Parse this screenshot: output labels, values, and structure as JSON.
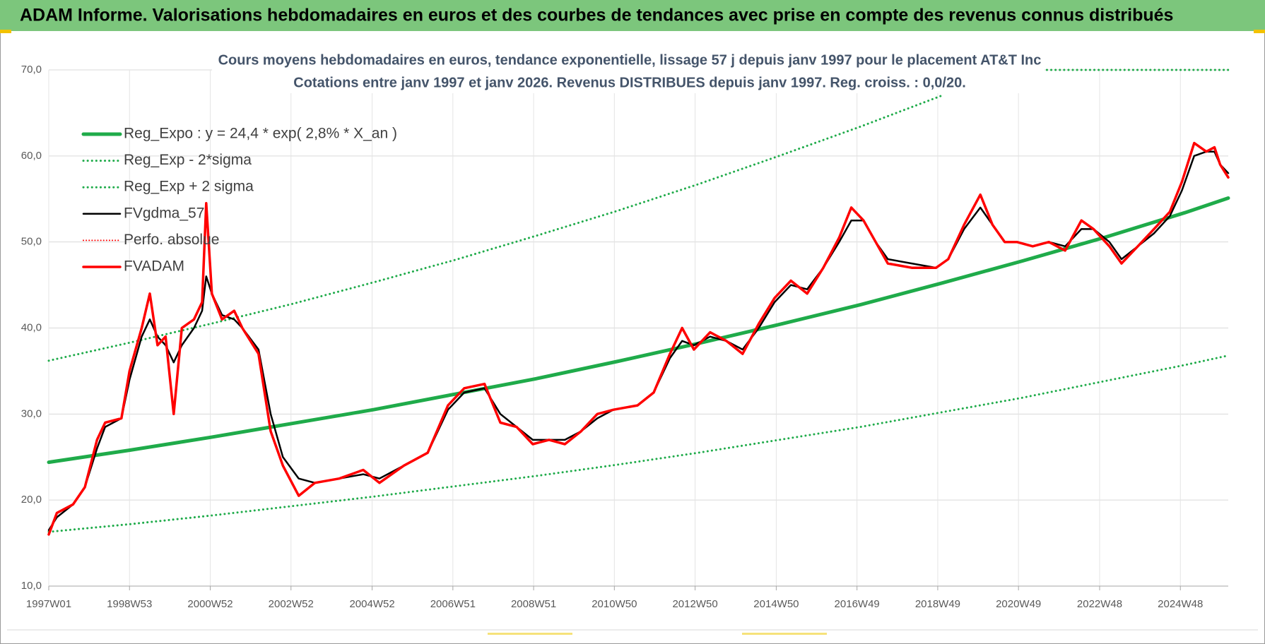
{
  "header": {
    "title": "ADAM Informe. Valorisations hebdomadaires en euros et des courbes de tendances avec prise en compte des revenus connus distribués"
  },
  "chart_data": {
    "type": "line",
    "title": "Cours moyens hebdomadaires en euros, tendance exponentielle, lissage 57 j depuis janv 1997 pour le placement AT&T Inc",
    "subtitle": "Cotations entre janv 1997 et janv 2026. Revenus DISTRIBUES depuis janv 1997. Reg. croiss. : 0,0/20.",
    "xlim": [
      1997.0,
      2026.07
    ],
    "xticks": [
      {
        "value": 1997.0,
        "label": "1997W01"
      },
      {
        "value": 1998.99,
        "label": "1998W53"
      },
      {
        "value": 2000.98,
        "label": "2000W52"
      },
      {
        "value": 2002.97,
        "label": "2002W52"
      },
      {
        "value": 2004.97,
        "label": "2004W52"
      },
      {
        "value": 2006.96,
        "label": "2006W51"
      },
      {
        "value": 2008.95,
        "label": "2008W51"
      },
      {
        "value": 2010.94,
        "label": "2010W50"
      },
      {
        "value": 2012.93,
        "label": "2012W50"
      },
      {
        "value": 2014.93,
        "label": "2014W50"
      },
      {
        "value": 2016.92,
        "label": "2016W49"
      },
      {
        "value": 2018.91,
        "label": "2018W49"
      },
      {
        "value": 2020.9,
        "label": "2020W49"
      },
      {
        "value": 2022.9,
        "label": "2022W48"
      },
      {
        "value": 2024.89,
        "label": "2024W48"
      }
    ],
    "ylim": [
      10,
      70
    ],
    "yticks": [
      {
        "value": 10,
        "label": "10,0"
      },
      {
        "value": 20,
        "label": "20,0"
      },
      {
        "value": 30,
        "label": "30,0"
      },
      {
        "value": 40,
        "label": "40,0"
      },
      {
        "value": 50,
        "label": "50,0"
      },
      {
        "value": 60,
        "label": "60,0"
      },
      {
        "value": 70,
        "label": "70,0"
      }
    ],
    "grid": true,
    "legend": "upper left",
    "x": [
      1997.0,
      1997.2,
      1997.6,
      1997.89,
      1998.19,
      1998.39,
      1998.79,
      1998.99,
      1999.29,
      1999.49,
      1999.68,
      1999.88,
      2000.08,
      2000.28,
      2000.58,
      2000.78,
      2000.88,
      2001.02,
      2001.27,
      2001.57,
      2001.77,
      2002.17,
      2002.47,
      2002.77,
      2003.16,
      2003.56,
      2004.16,
      2004.75,
      2005.15,
      2005.75,
      2006.34,
      2006.84,
      2007.24,
      2007.74,
      2008.13,
      2008.53,
      2008.93,
      2009.33,
      2009.72,
      2010.12,
      2010.52,
      2010.92,
      2011.51,
      2011.91,
      2012.31,
      2012.61,
      2012.9,
      2013.3,
      2013.7,
      2014.1,
      2014.5,
      2014.89,
      2015.29,
      2015.69,
      2016.09,
      2016.48,
      2016.78,
      2017.08,
      2017.38,
      2017.68,
      2018.27,
      2018.87,
      2019.17,
      2019.56,
      2019.96,
      2020.26,
      2020.56,
      2020.86,
      2021.25,
      2021.65,
      2022.05,
      2022.45,
      2022.75,
      2023.14,
      2023.44,
      2023.84,
      2024.24,
      2024.63,
      2024.93,
      2025.23,
      2025.53,
      2025.73,
      2025.87,
      2026.07
    ],
    "series": [
      {
        "name": "Reg_Expo : y = 24,4 * exp( 2,8% *  X_an )",
        "color": "#1fab4a",
        "style": "solid",
        "width": 5,
        "x": [
          1997,
          1999,
          2001,
          2003,
          2005,
          2007,
          2009,
          2011,
          2013,
          2015,
          2017,
          2019,
          2021,
          2023,
          2025,
          2026.07
        ],
        "values": [
          24.4,
          25.8,
          27.3,
          28.9,
          30.5,
          32.3,
          34.1,
          36.1,
          38.2,
          40.4,
          42.7,
          45.2,
          47.8,
          50.5,
          53.4,
          55.1
        ]
      },
      {
        "name": "Reg_Exp - 2*sigma",
        "color": "#1fab4a",
        "style": "dotted",
        "width": 3,
        "x": [
          1997,
          1999,
          2001,
          2003,
          2005,
          2007,
          2009,
          2011,
          2013,
          2015,
          2017,
          2019,
          2021,
          2023,
          2025,
          2026.07
        ],
        "values": [
          16.3,
          17.2,
          18.2,
          19.3,
          20.4,
          21.6,
          22.8,
          24.1,
          25.5,
          27.0,
          28.5,
          30.2,
          31.9,
          33.8,
          35.7,
          36.8
        ]
      },
      {
        "name": "Reg_Exp + 2 sigma",
        "color": "#1fab4a",
        "style": "dotted",
        "width": 3,
        "x": [
          1997,
          1999,
          2001,
          2003,
          2005,
          2007,
          2009,
          2011,
          2013,
          2015,
          2017,
          2019,
          2020.3,
          2021.6,
          2026.07
        ],
        "values": [
          36.2,
          38.3,
          40.5,
          42.8,
          45.3,
          47.9,
          50.7,
          53.6,
          56.7,
          60.0,
          63.4,
          67.0,
          null,
          70,
          70
        ]
      },
      {
        "name": "FVgdma_57",
        "color": "#000000",
        "style": "solid",
        "width": 2.5,
        "values": [
          16.5,
          18,
          19.5,
          21.5,
          26,
          28.5,
          29.5,
          34,
          39,
          41,
          39,
          38,
          36,
          38,
          40,
          42,
          46,
          44,
          41.5,
          41,
          40,
          37.5,
          30,
          25,
          22.5,
          22,
          22.5,
          23,
          22.5,
          24,
          25.5,
          30.5,
          32.5,
          33,
          30,
          28.5,
          27,
          27,
          27,
          28,
          29.5,
          30.5,
          31,
          32.5,
          36.5,
          38.5,
          38,
          39,
          38.5,
          37.5,
          40,
          43,
          45,
          44.5,
          47,
          50,
          52.5,
          52.5,
          50,
          48,
          47.5,
          47,
          48,
          51.5,
          54,
          52,
          50,
          50,
          49.5,
          50,
          49.5,
          51.5,
          51.5,
          50,
          48,
          49.5,
          51,
          53,
          56,
          60,
          60.5,
          60.5,
          59,
          58
        ]
      },
      {
        "name": "Perfo. absolue",
        "color": "#ff0000",
        "style": "dotted",
        "width": 2,
        "x": [],
        "values": []
      },
      {
        "name": "FVADAM",
        "color": "#ff0000",
        "style": "solid",
        "width": 3.5,
        "values": [
          16,
          18.5,
          19.5,
          21.5,
          27,
          29,
          29.5,
          35,
          40,
          44,
          38,
          39,
          30,
          40,
          41,
          43,
          54.5,
          44,
          41,
          42,
          40,
          37,
          28,
          24,
          20.5,
          22,
          22.5,
          23.5,
          22,
          24,
          25.5,
          31,
          33,
          33.5,
          29,
          28.5,
          26.5,
          27,
          26.5,
          28,
          30,
          30.5,
          31,
          32.5,
          37,
          40,
          37.5,
          39.5,
          38.5,
          37,
          40.5,
          43.5,
          45.5,
          44,
          47,
          50.5,
          54,
          52.5,
          50,
          47.5,
          47,
          47,
          48,
          52,
          55.5,
          52,
          50,
          50,
          49.5,
          50,
          49,
          52.5,
          51.5,
          49.5,
          47.5,
          49.5,
          51.5,
          53.5,
          57,
          61.5,
          60.5,
          61,
          59,
          57.5
        ]
      }
    ]
  }
}
